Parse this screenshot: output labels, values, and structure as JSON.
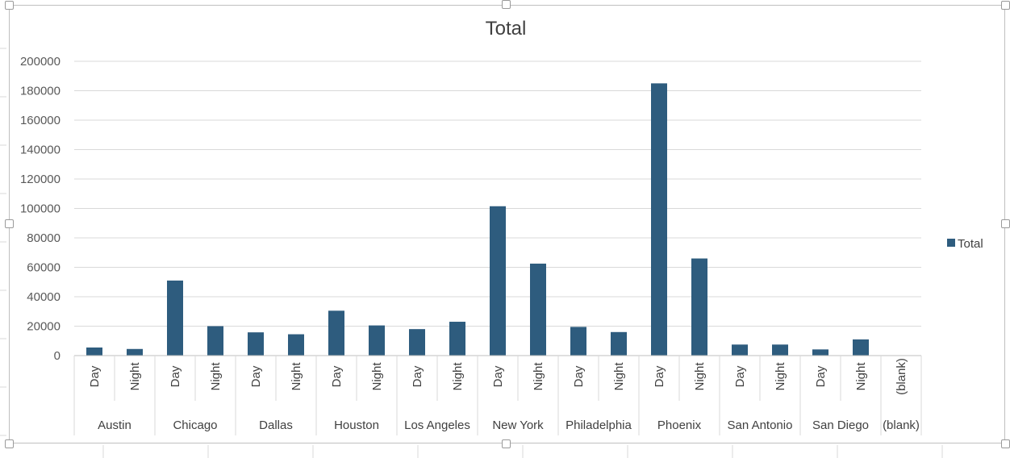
{
  "chart_data": {
    "type": "bar",
    "title": "Total",
    "xlabel": "",
    "ylabel": "",
    "ylim": [
      0,
      200000
    ],
    "yticks": [
      "0",
      "20000",
      "40000",
      "60000",
      "80000",
      "100000",
      "120000",
      "140000",
      "160000",
      "180000",
      "200000"
    ],
    "grid": true,
    "legend_position": "right",
    "color": "#2e5c7e",
    "groups": [
      {
        "name": "Austin",
        "categories": [
          "Day",
          "Night"
        ]
      },
      {
        "name": "Chicago",
        "categories": [
          "Day",
          "Night"
        ]
      },
      {
        "name": "Dallas",
        "categories": [
          "Day",
          "Night"
        ]
      },
      {
        "name": "Houston",
        "categories": [
          "Day",
          "Night"
        ]
      },
      {
        "name": "Los Angeles",
        "categories": [
          "Day",
          "Night"
        ]
      },
      {
        "name": "New York",
        "categories": [
          "Day",
          "Night"
        ]
      },
      {
        "name": "Philadelphia",
        "categories": [
          "Day",
          "Night"
        ]
      },
      {
        "name": "Phoenix",
        "categories": [
          "Day",
          "Night"
        ]
      },
      {
        "name": "San Antonio",
        "categories": [
          "Day",
          "Night"
        ]
      },
      {
        "name": "San Diego",
        "categories": [
          "Day",
          "Night"
        ]
      },
      {
        "name": "(blank)",
        "categories": [
          "(blank)"
        ]
      }
    ],
    "series": [
      {
        "name": "Total",
        "values": [
          5500,
          4500,
          51000,
          20000,
          15800,
          14500,
          30500,
          20500,
          18000,
          23000,
          101500,
          62500,
          19500,
          16000,
          185000,
          66000,
          7500,
          7500,
          4200,
          11000,
          0
        ]
      }
    ]
  }
}
